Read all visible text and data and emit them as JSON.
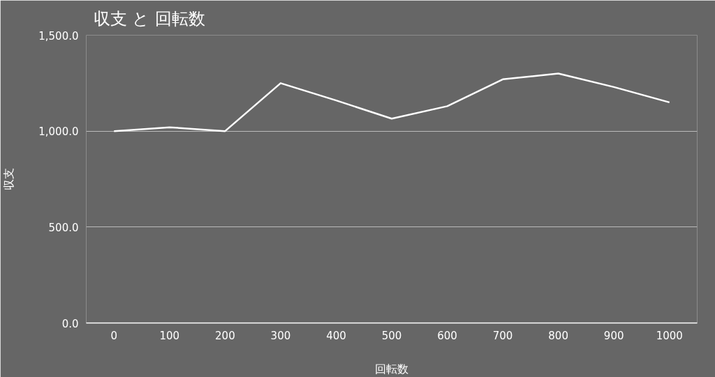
{
  "chart_data": {
    "type": "line",
    "title": "収支 と 回転数",
    "xlabel": "回転数",
    "ylabel": "収支",
    "categories": [
      "0",
      "100",
      "200",
      "300",
      "400",
      "500",
      "600",
      "700",
      "800",
      "900",
      "1000"
    ],
    "series": [
      {
        "color": "#ffffff",
        "values": [
          1000,
          1020,
          1000,
          1250,
          1160,
          1065,
          1130,
          1270,
          1300,
          1230,
          1150
        ]
      }
    ],
    "ylim": [
      0,
      1500
    ],
    "yticks": [
      {
        "value": 0,
        "label": "0.0"
      },
      {
        "value": 500,
        "label": "500.0"
      },
      {
        "value": 1000,
        "label": "1,000.0"
      },
      {
        "value": 1500,
        "label": "1,500.0"
      }
    ],
    "grid": "y",
    "marker": "none",
    "line_style": "solid"
  }
}
